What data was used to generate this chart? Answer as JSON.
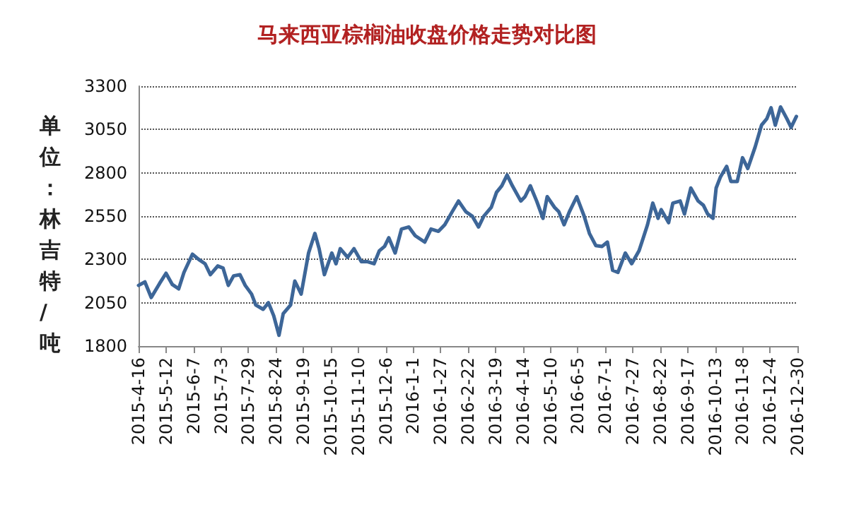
{
  "chart_data": {
    "type": "line",
    "title": "马来西亚棕榈油收盘价格走势对比图",
    "ylabel": "单位：林吉特/吨",
    "x": [
      "2015-04-16",
      "2015-04-22",
      "2015-04-28",
      "2015-05-06",
      "2015-05-12",
      "2015-05-18",
      "2015-05-24",
      "2015-05-29",
      "2015-06-06",
      "2015-06-12",
      "2015-06-18",
      "2015-06-23",
      "2015-06-30",
      "2015-07-05",
      "2015-07-10",
      "2015-07-15",
      "2015-07-21",
      "2015-07-26",
      "2015-08-01",
      "2015-08-05",
      "2015-08-12",
      "2015-08-17",
      "2015-08-22",
      "2015-08-27",
      "2015-08-31",
      "2015-09-07",
      "2015-09-11",
      "2015-09-17",
      "2015-09-24",
      "2015-09-30",
      "2015-10-04",
      "2015-10-09",
      "2015-10-16",
      "2015-10-20",
      "2015-10-24",
      "2015-10-31",
      "2015-11-06",
      "2015-11-13",
      "2015-11-19",
      "2015-11-25",
      "2015-11-30",
      "2015-12-05",
      "2015-12-09",
      "2015-12-15",
      "2015-12-21",
      "2015-12-28",
      "2016-01-03",
      "2016-01-12",
      "2016-01-18",
      "2016-01-25",
      "2016-01-31",
      "2016-02-07",
      "2016-02-13",
      "2016-02-20",
      "2016-02-26",
      "2016-03-03",
      "2016-03-08",
      "2016-03-15",
      "2016-03-20",
      "2016-03-25",
      "2016-03-30",
      "2016-04-04",
      "2016-04-12",
      "2016-04-16",
      "2016-04-21",
      "2016-04-27",
      "2016-05-03",
      "2016-05-07",
      "2016-05-14",
      "2016-05-18",
      "2016-05-23",
      "2016-05-28",
      "2016-06-04",
      "2016-06-11",
      "2016-06-16",
      "2016-06-22",
      "2016-06-28",
      "2016-07-03",
      "2016-07-08",
      "2016-07-13",
      "2016-07-20",
      "2016-07-26",
      "2016-08-02",
      "2016-08-06",
      "2016-08-10",
      "2016-08-15",
      "2016-08-20",
      "2016-08-23",
      "2016-08-30",
      "2016-09-03",
      "2016-09-10",
      "2016-09-14",
      "2016-09-20",
      "2016-09-27",
      "2016-10-02",
      "2016-10-06",
      "2016-10-11",
      "2016-10-14",
      "2016-10-18",
      "2016-10-24",
      "2016-10-28",
      "2016-11-03",
      "2016-11-08",
      "2016-11-13",
      "2016-11-20",
      "2016-11-26",
      "2016-12-01",
      "2016-12-05",
      "2016-12-09",
      "2016-12-14",
      "2016-12-20",
      "2016-12-24",
      "2016-12-29"
    ],
    "series": [
      {
        "color": "#3d6698",
        "values": [
          2150,
          2170,
          2080,
          2162,
          2220,
          2155,
          2130,
          2225,
          2330,
          2300,
          2275,
          2212,
          2262,
          2250,
          2150,
          2205,
          2212,
          2150,
          2100,
          2037,
          2012,
          2050,
          1975,
          1862,
          1987,
          2037,
          2175,
          2100,
          2337,
          2450,
          2362,
          2212,
          2337,
          2275,
          2362,
          2312,
          2362,
          2287,
          2287,
          2275,
          2350,
          2375,
          2425,
          2337,
          2475,
          2487,
          2437,
          2400,
          2475,
          2462,
          2500,
          2575,
          2637,
          2575,
          2550,
          2487,
          2550,
          2600,
          2687,
          2725,
          2787,
          2725,
          2637,
          2662,
          2725,
          2637,
          2537,
          2662,
          2600,
          2575,
          2500,
          2575,
          2662,
          2550,
          2450,
          2380,
          2375,
          2400,
          2237,
          2225,
          2337,
          2275,
          2350,
          2425,
          2500,
          2625,
          2537,
          2587,
          2512,
          2625,
          2637,
          2562,
          2712,
          2637,
          2612,
          2562,
          2537,
          2712,
          2775,
          2837,
          2750,
          2750,
          2887,
          2825,
          2950,
          3075,
          3112,
          3175,
          3075,
          3180,
          3112,
          3062,
          3125
        ]
      }
    ],
    "xlim": [
      "2015-04-16",
      "2016-12-30"
    ],
    "xticks": [
      {
        "value": "2015-04-16",
        "label": "2015-4-16"
      },
      {
        "value": "2015-05-12",
        "label": "2015-5-12"
      },
      {
        "value": "2015-06-07",
        "label": "2015-6-7"
      },
      {
        "value": "2015-07-03",
        "label": "2015-7-3"
      },
      {
        "value": "2015-07-29",
        "label": "2015-7-29"
      },
      {
        "value": "2015-08-24",
        "label": "2015-8-24"
      },
      {
        "value": "2015-09-19",
        "label": "2015-9-19"
      },
      {
        "value": "2015-10-15",
        "label": "2015-10-15"
      },
      {
        "value": "2015-11-10",
        "label": "2015-11-10"
      },
      {
        "value": "2015-12-06",
        "label": "2015-12-6"
      },
      {
        "value": "2016-01-01",
        "label": "2016-1-1"
      },
      {
        "value": "2016-01-27",
        "label": "2016-1-27"
      },
      {
        "value": "2016-02-22",
        "label": "2016-2-22"
      },
      {
        "value": "2016-03-19",
        "label": "2016-3-19"
      },
      {
        "value": "2016-04-14",
        "label": "2016-4-14"
      },
      {
        "value": "2016-05-10",
        "label": "2016-5-10"
      },
      {
        "value": "2016-06-05",
        "label": "2016-6-5"
      },
      {
        "value": "2016-07-01",
        "label": "2016-7-1"
      },
      {
        "value": "2016-07-27",
        "label": "2016-7-27"
      },
      {
        "value": "2016-08-22",
        "label": "2016-8-22"
      },
      {
        "value": "2016-09-17",
        "label": "2016-9-17"
      },
      {
        "value": "2016-10-13",
        "label": "2016-10-13"
      },
      {
        "value": "2016-11-08",
        "label": "2016-11-8"
      },
      {
        "value": "2016-12-04",
        "label": "2016-12-4"
      },
      {
        "value": "2016-12-30",
        "label": "2016-12-30"
      }
    ],
    "ylim": [
      1800,
      3300
    ],
    "yticks": [
      1800,
      2050,
      2300,
      2550,
      2800,
      3050,
      3300
    ],
    "grid": "y",
    "marker": "none",
    "line_style": "solid"
  }
}
